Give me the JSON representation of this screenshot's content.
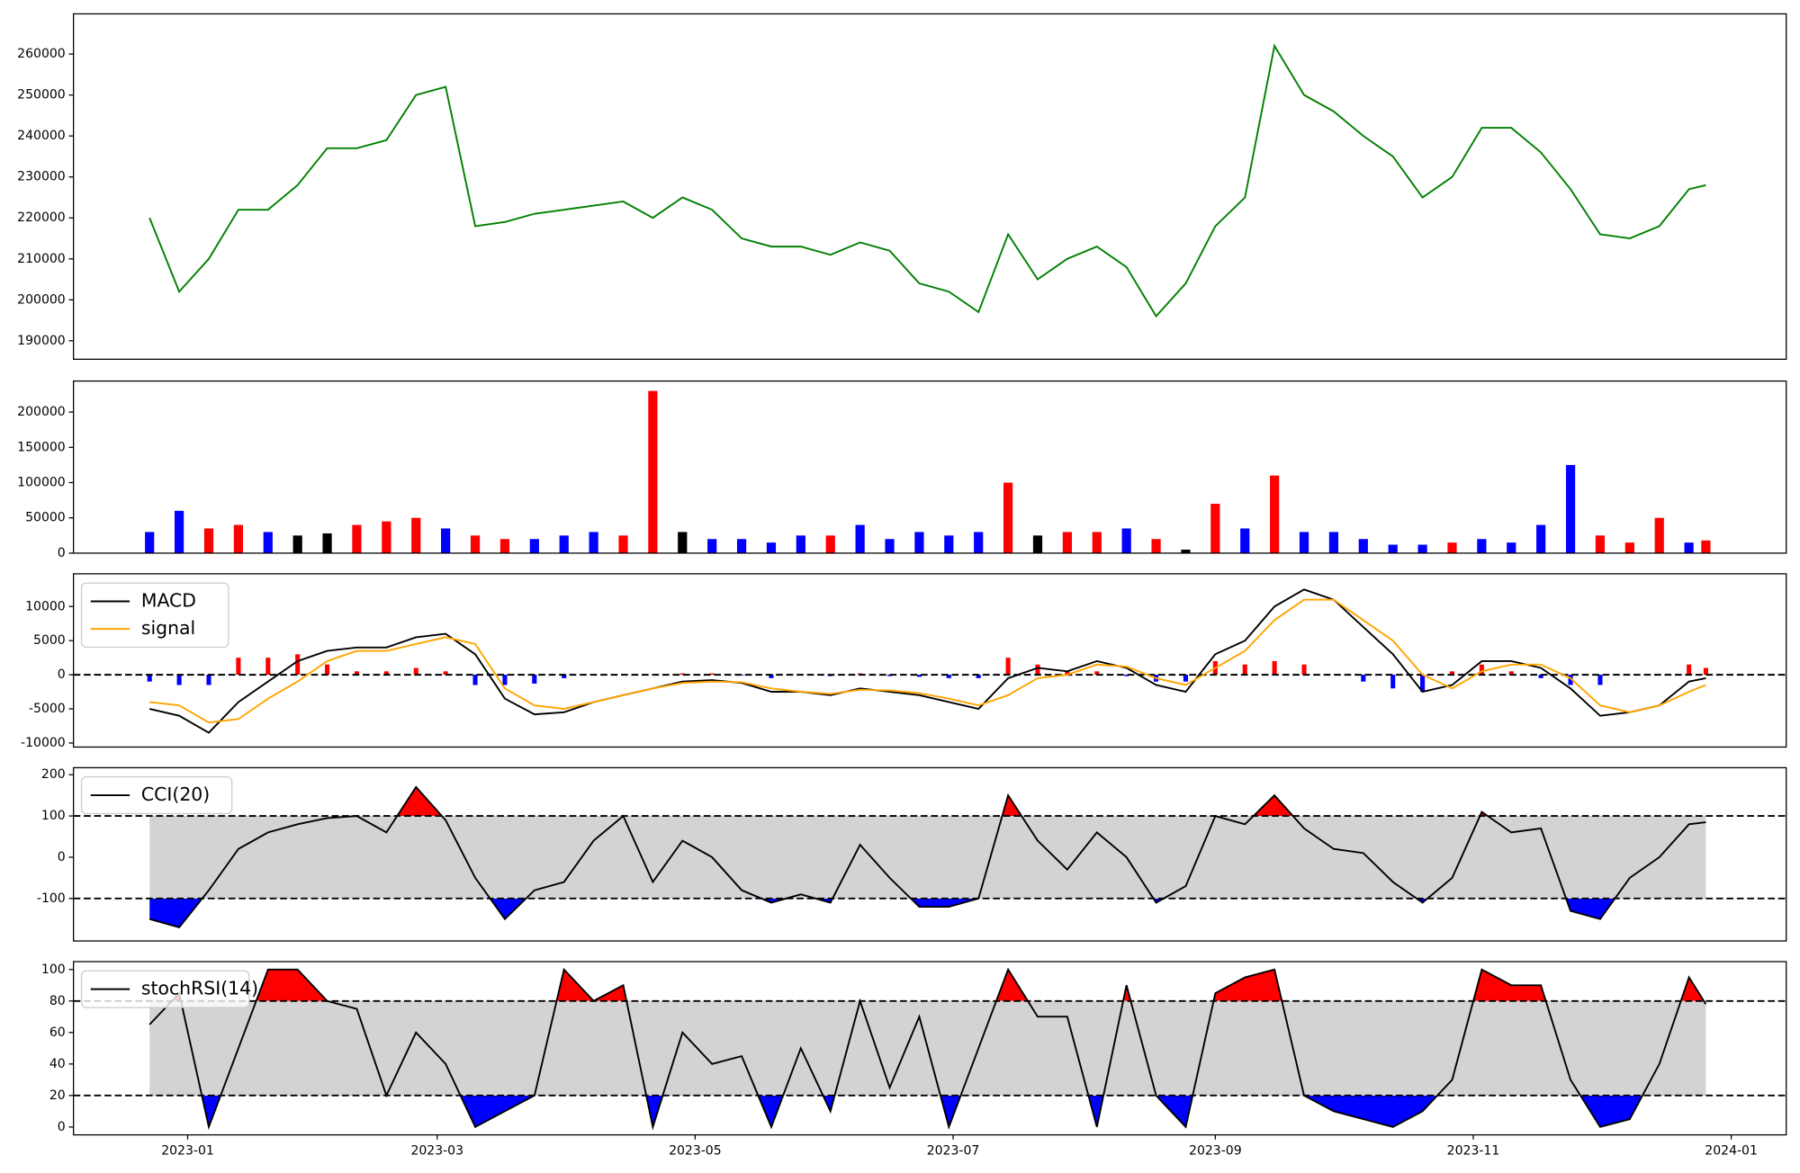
{
  "chart_data": [
    {
      "type": "line",
      "xlim": [
        -27,
        378
      ],
      "ylim": [
        185500,
        269800
      ],
      "yticks": [
        190000,
        200000,
        210000,
        220000,
        230000,
        240000,
        250000,
        260000
      ],
      "x": [
        -9,
        -2,
        5,
        12,
        19,
        26,
        33,
        40,
        47,
        54,
        61,
        68,
        75,
        82,
        89,
        96,
        103,
        110,
        117,
        124,
        131,
        138,
        145,
        152,
        159,
        166,
        173,
        180,
        187,
        194,
        201,
        208,
        215,
        222,
        229,
        236,
        243,
        250,
        257,
        264,
        271,
        278,
        285,
        292,
        299,
        306,
        313,
        320,
        327,
        334,
        341,
        348,
        355,
        359
      ],
      "series": [
        {
          "color": "green",
          "values": [
            220000,
            202000,
            210000,
            222000,
            222000,
            228000,
            237000,
            237000,
            239000,
            250000,
            252000,
            218000,
            219000,
            221000,
            222000,
            223000,
            224000,
            220000,
            225000,
            222000,
            215000,
            213000,
            213000,
            211000,
            214000,
            212000,
            204000,
            202000,
            197000,
            216000,
            205000,
            210000,
            213000,
            208000,
            196000,
            204000,
            218000,
            225000,
            262000,
            250000,
            246000,
            240000,
            235000,
            225000,
            230000,
            242000,
            242000,
            236000,
            227000,
            216000,
            215000,
            218000,
            227000,
            228000
          ]
        }
      ]
    },
    {
      "type": "bar",
      "xlim": [
        -27,
        378
      ],
      "ylim": [
        0,
        244000
      ],
      "yticks": [
        0,
        50000,
        100000,
        150000,
        200000
      ],
      "x": [
        -9,
        -2,
        5,
        12,
        19,
        26,
        33,
        40,
        47,
        54,
        61,
        68,
        75,
        82,
        89,
        96,
        103,
        110,
        117,
        124,
        131,
        138,
        145,
        152,
        159,
        166,
        173,
        180,
        187,
        194,
        201,
        208,
        215,
        222,
        229,
        236,
        243,
        250,
        257,
        264,
        271,
        278,
        285,
        292,
        299,
        306,
        313,
        320,
        327,
        334,
        341,
        348,
        355,
        359
      ],
      "values": [
        30000,
        60000,
        35000,
        40000,
        30000,
        25000,
        28000,
        40000,
        45000,
        50000,
        35000,
        25000,
        20000,
        20000,
        25000,
        30000,
        25000,
        230000,
        30000,
        20000,
        20000,
        15000,
        25000,
        25000,
        40000,
        20000,
        30000,
        25000,
        30000,
        100000,
        25000,
        30000,
        30000,
        35000,
        20000,
        5000,
        70000,
        35000,
        110000,
        30000,
        30000,
        20000,
        12000,
        12000,
        15000,
        20000,
        15000,
        40000,
        125000,
        25000,
        15000,
        50000,
        15000,
        18000
      ],
      "colors": [
        "blue",
        "blue",
        "red",
        "red",
        "blue",
        "black",
        "black",
        "red",
        "red",
        "red",
        "blue",
        "red",
        "red",
        "blue",
        "blue",
        "blue",
        "red",
        "red",
        "black",
        "blue",
        "blue",
        "blue",
        "blue",
        "red",
        "blue",
        "blue",
        "blue",
        "blue",
        "blue",
        "red",
        "black",
        "red",
        "red",
        "blue",
        "red",
        "black",
        "red",
        "blue",
        "red",
        "blue",
        "blue",
        "blue",
        "blue",
        "blue",
        "red",
        "blue",
        "blue",
        "blue",
        "blue",
        "red",
        "red",
        "red",
        "blue",
        "red"
      ]
    },
    {
      "type": "line",
      "xlim": [
        -27,
        378
      ],
      "ylim": [
        -10600,
        14800
      ],
      "yticks": [
        -10000,
        -5000,
        0,
        5000,
        10000
      ],
      "levels": [
        0
      ],
      "legend": "upper left",
      "x": [
        -9,
        -2,
        5,
        12,
        19,
        26,
        33,
        40,
        47,
        54,
        61,
        68,
        75,
        82,
        89,
        96,
        103,
        110,
        117,
        124,
        131,
        138,
        145,
        152,
        159,
        166,
        173,
        180,
        187,
        194,
        201,
        208,
        215,
        222,
        229,
        236,
        243,
        250,
        257,
        264,
        271,
        278,
        285,
        292,
        299,
        306,
        313,
        320,
        327,
        334,
        341,
        348,
        355,
        359
      ],
      "series": [
        {
          "name": "MACD",
          "color": "black",
          "values": [
            -5000,
            -6000,
            -8500,
            -4000,
            -1000,
            2000,
            3500,
            4000,
            4000,
            5500,
            6000,
            3000,
            -3500,
            -5800,
            -5500,
            -4000,
            -3000,
            -2000,
            -1000,
            -800,
            -1200,
            -2500,
            -2500,
            -3000,
            -2000,
            -2500,
            -3000,
            -4000,
            -5000,
            -500,
            1000,
            500,
            2000,
            1000,
            -1500,
            -2500,
            3000,
            5000,
            10000,
            12500,
            11000,
            7000,
            3000,
            -2500,
            -1500,
            2000,
            2000,
            1000,
            -2000,
            -6000,
            -5500,
            -4500,
            -1000,
            -500
          ]
        },
        {
          "name": "signal",
          "color": "orange",
          "values": [
            -4000,
            -4500,
            -7000,
            -6500,
            -3500,
            -1000,
            2000,
            3500,
            3500,
            4500,
            5500,
            4500,
            -2000,
            -4500,
            -5000,
            -4000,
            -3000,
            -2000,
            -1200,
            -1000,
            -1100,
            -2000,
            -2500,
            -2800,
            -2200,
            -2300,
            -2700,
            -3500,
            -4500,
            -3000,
            -500,
            0,
            1500,
            1200,
            -500,
            -1500,
            1000,
            3500,
            8000,
            11000,
            11000,
            8000,
            5000,
            0,
            -2000,
            500,
            1500,
            1500,
            -500,
            -4500,
            -5500,
            -4500,
            -2500,
            -1500
          ]
        }
      ],
      "histogram": {
        "pos_color": "red",
        "neg_color": "blue",
        "values": [
          -1000,
          -1500,
          -1500,
          2500,
          2500,
          3000,
          1500,
          500,
          500,
          1000,
          500,
          -1500,
          -1500,
          -1300,
          -500,
          0,
          0,
          0,
          200,
          200,
          -100,
          -500,
          0,
          -200,
          200,
          -200,
          -300,
          -500,
          -500,
          2500,
          1500,
          500,
          500,
          -200,
          -1000,
          -1000,
          2000,
          1500,
          2000,
          1500,
          0,
          -1000,
          -2000,
          -2500,
          500,
          1500,
          500,
          -500,
          -1500,
          -1500,
          0,
          0,
          1500,
          1000
        ]
      }
    },
    {
      "type": "oscillator",
      "xlim": [
        -27,
        378
      ],
      "ylim": [
        -203,
        217
      ],
      "yticks": [
        -100,
        0,
        100,
        200
      ],
      "levels": [
        -100,
        100
      ],
      "legend": "upper left",
      "band_color": "lightgray",
      "upper_color": "red",
      "lower_color": "blue",
      "x": [
        -9,
        -2,
        5,
        12,
        19,
        26,
        33,
        40,
        47,
        54,
        61,
        68,
        75,
        82,
        89,
        96,
        103,
        110,
        117,
        124,
        131,
        138,
        145,
        152,
        159,
        166,
        173,
        180,
        187,
        194,
        201,
        208,
        215,
        222,
        229,
        236,
        243,
        250,
        257,
        264,
        271,
        278,
        285,
        292,
        299,
        306,
        313,
        320,
        327,
        334,
        341,
        348,
        355,
        359
      ],
      "series": [
        {
          "name": "CCI(20)",
          "color": "black",
          "values": [
            -150,
            -170,
            -80,
            20,
            60,
            80,
            95,
            100,
            60,
            170,
            90,
            -50,
            -150,
            -80,
            -60,
            40,
            100,
            -60,
            40,
            0,
            -80,
            -110,
            -90,
            -110,
            30,
            -50,
            -120,
            -120,
            -100,
            150,
            40,
            -30,
            60,
            0,
            -110,
            -70,
            100,
            80,
            150,
            70,
            20,
            10,
            -60,
            -110,
            -50,
            110,
            60,
            70,
            -130,
            -150,
            -50,
            0,
            80,
            85
          ]
        }
      ]
    },
    {
      "type": "oscillator",
      "xlim": [
        -27,
        378
      ],
      "ylim": [
        -5,
        105
      ],
      "yticks": [
        0,
        20,
        40,
        60,
        80,
        100
      ],
      "levels": [
        20,
        80
      ],
      "legend": "upper left",
      "band_color": "lightgray",
      "upper_color": "red",
      "lower_color": "blue",
      "xticks": [
        {
          "value": 0,
          "label": "2023-01"
        },
        {
          "value": 59,
          "label": "2023-03"
        },
        {
          "value": 120,
          "label": "2023-05"
        },
        {
          "value": 181,
          "label": "2023-07"
        },
        {
          "value": 243,
          "label": "2023-09"
        },
        {
          "value": 304,
          "label": "2023-11"
        },
        {
          "value": 365,
          "label": "2024-01"
        }
      ],
      "x": [
        -9,
        -2,
        5,
        12,
        19,
        26,
        33,
        40,
        47,
        54,
        61,
        68,
        75,
        82,
        89,
        96,
        103,
        110,
        117,
        124,
        131,
        138,
        145,
        152,
        159,
        166,
        173,
        180,
        187,
        194,
        201,
        208,
        215,
        222,
        229,
        236,
        243,
        250,
        257,
        264,
        271,
        278,
        285,
        292,
        299,
        306,
        313,
        320,
        327,
        334,
        341,
        348,
        355,
        359
      ],
      "series": [
        {
          "name": "stochRSI(14)",
          "color": "black",
          "values": [
            65,
            85,
            0,
            50,
            100,
            100,
            80,
            75,
            20,
            60,
            40,
            0,
            10,
            20,
            100,
            80,
            90,
            0,
            60,
            40,
            45,
            0,
            50,
            10,
            80,
            25,
            70,
            0,
            50,
            100,
            70,
            70,
            0,
            90,
            20,
            0,
            85,
            95,
            100,
            20,
            10,
            5,
            0,
            10,
            30,
            100,
            90,
            90,
            30,
            0,
            5,
            40,
            95,
            78
          ]
        }
      ]
    }
  ]
}
